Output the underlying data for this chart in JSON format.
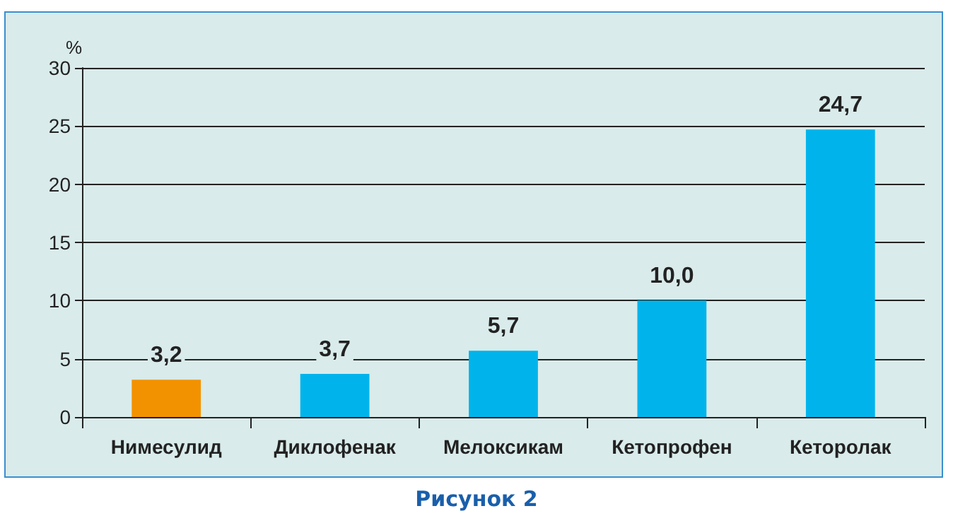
{
  "chart_data": {
    "type": "bar",
    "ylabel": "%",
    "annotations": [
      "Рисунок 2"
    ],
    "categories": [
      "Нимесулид",
      "Диклофенак",
      "Мелоксикам",
      "Кетопрофен",
      "Кеторолак"
    ],
    "values": [
      3.2,
      3.7,
      5.7,
      10.0,
      24.7
    ],
    "colors": [
      "#f39200",
      "#00b4eb",
      "#00b4eb",
      "#00b4eb",
      "#00b4eb"
    ],
    "value_labels": [
      "3,2",
      "3,7",
      "5,7",
      "10,0",
      "24,7"
    ],
    "ylim": [
      0,
      30
    ],
    "yticks": [
      0,
      5,
      10,
      15,
      20,
      25,
      30
    ],
    "grid": "y"
  }
}
